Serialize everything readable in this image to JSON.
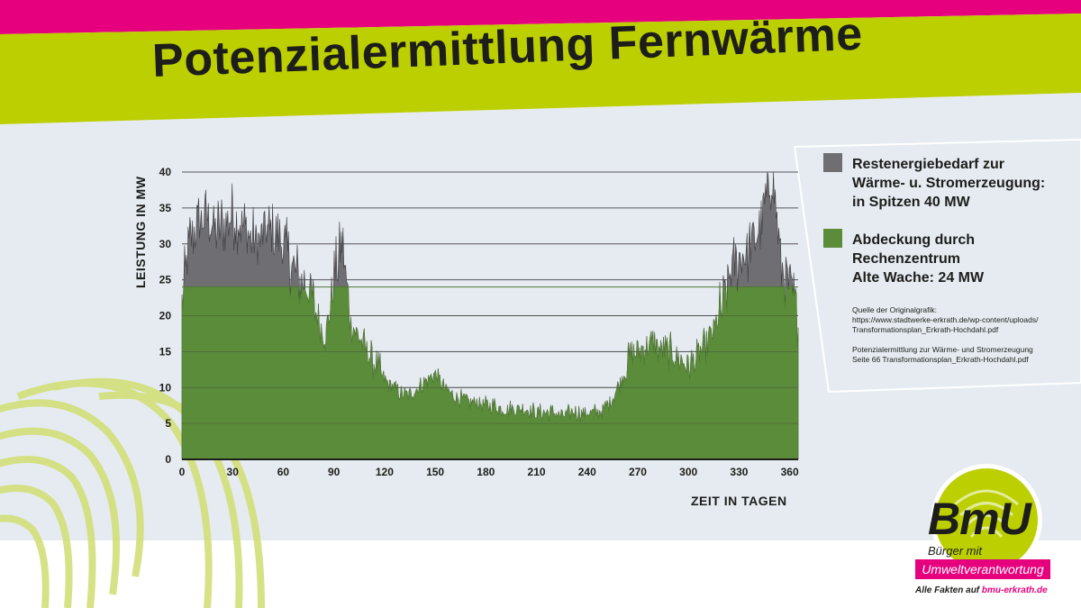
{
  "page": {
    "title": "Potenzialermittlung Fernwärme",
    "colors": {
      "magenta": "#e6007e",
      "lime": "#bccf00",
      "panel": "#e6ebf1",
      "graphite": "#706f6f",
      "green": "#5b8c3a"
    }
  },
  "legend": {
    "items": [
      {
        "lines": [
          "Restenergiebedarf zur",
          "Wärme- u. Stromerzeugung:",
          "in Spitzen 40 MW"
        ],
        "color": "#6f6e72"
      },
      {
        "lines": [
          "Abdeckung durch",
          "Rechenzentrum",
          "Alte Wache: 24 MW"
        ],
        "color": "#5b8c3a"
      }
    ],
    "source": {
      "block1": [
        "Quelle der Originalgrafik:",
        "https://www.stadtwerke-erkrath.de/wp-content/uploads/",
        "Transformationsplan_Erkrath-Hochdahl.pdf"
      ],
      "block2": [
        "Potenzialermittlung zur Wärme- und Stromerzeugung",
        "Seite 66 Transformationsplan_Erkrath-Hochdahl.pdf"
      ]
    }
  },
  "logo": {
    "brand": "BmU",
    "tagline1": "Bürger mit",
    "tagline2": "Umweltverantwortung",
    "footer_prefix": "Alle Fakten auf ",
    "footer_link": "bmu-erkrath.de"
  },
  "chart_data": {
    "type": "area",
    "title": "",
    "xlabel": "ZEIT IN TAGEN",
    "ylabel": "LEISTUNG IN MW",
    "xlim": [
      0,
      365
    ],
    "ylim": [
      0,
      40
    ],
    "xticks": [
      0,
      30,
      60,
      90,
      120,
      150,
      180,
      210,
      240,
      270,
      300,
      330,
      360
    ],
    "yticks": [
      0,
      5,
      10,
      15,
      20,
      25,
      30,
      35,
      40
    ],
    "grid": true,
    "cap_value": 24,
    "x": [
      0,
      5,
      10,
      15,
      20,
      25,
      30,
      35,
      40,
      45,
      50,
      55,
      60,
      65,
      70,
      75,
      80,
      85,
      90,
      95,
      100,
      105,
      110,
      115,
      120,
      125,
      130,
      135,
      140,
      145,
      150,
      155,
      160,
      165,
      170,
      175,
      180,
      185,
      190,
      195,
      200,
      205,
      210,
      215,
      220,
      225,
      230,
      235,
      240,
      245,
      250,
      255,
      260,
      265,
      270,
      275,
      280,
      285,
      290,
      295,
      300,
      305,
      310,
      315,
      320,
      325,
      330,
      335,
      340,
      345,
      350,
      355,
      360,
      365
    ],
    "series": [
      {
        "name": "Restenergiebedarf zur Wärme- u. Stromerzeugung",
        "values": [
          22,
          31,
          33,
          34,
          32,
          33,
          34,
          33,
          31,
          30,
          32,
          31,
          30,
          27,
          25,
          24,
          20,
          17,
          25,
          30,
          19,
          17,
          15,
          13,
          11,
          10,
          9,
          9,
          10,
          11,
          12,
          10,
          9,
          8.5,
          8,
          8,
          7.5,
          7.5,
          7,
          7,
          7,
          7,
          6.5,
          6.5,
          6.5,
          6,
          6.5,
          6.5,
          6.5,
          6.5,
          7,
          8.5,
          11,
          14,
          15,
          16,
          16,
          15,
          15,
          14,
          13,
          14,
          16,
          18,
          21,
          26,
          28,
          29,
          31,
          35,
          40,
          27,
          24,
          20
        ]
      },
      {
        "name": "Abdeckung durch Rechenzentrum Alte Wache",
        "values": [
          22,
          24,
          24,
          24,
          24,
          24,
          24,
          24,
          24,
          24,
          24,
          24,
          24,
          24,
          24,
          24,
          20,
          17,
          24,
          24,
          19,
          17,
          15,
          13,
          11,
          10,
          9,
          9,
          10,
          11,
          12,
          10,
          9,
          8.5,
          8,
          8,
          7.5,
          7.5,
          7,
          7,
          7,
          7,
          6.5,
          6.5,
          6.5,
          6,
          6.5,
          6.5,
          6.5,
          6.5,
          7,
          8.5,
          11,
          14,
          15,
          16,
          16,
          15,
          15,
          14,
          13,
          14,
          16,
          18,
          21,
          24,
          24,
          24,
          24,
          24,
          24,
          24,
          24,
          20
        ]
      }
    ]
  }
}
